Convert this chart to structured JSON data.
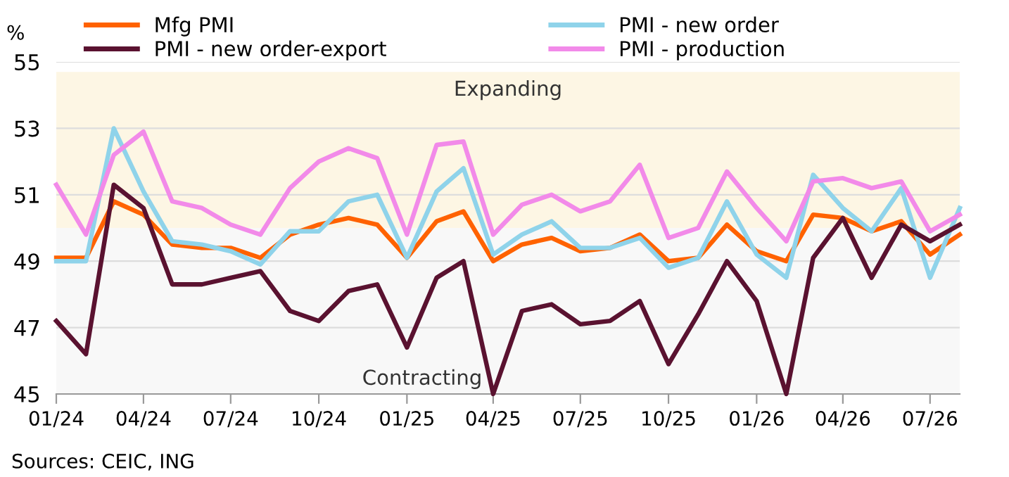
{
  "chart_data": {
    "type": "line",
    "ylabel": "%",
    "x": [
      "2024-01",
      "2024-02",
      "2024-03",
      "2024-04",
      "2024-05",
      "2024-06",
      "2024-07",
      "2024-08",
      "2024-09",
      "2024-10",
      "2024-11",
      "2024-12",
      "2025-01",
      "2025-02",
      "2025-03",
      "2025-04",
      "2025-05",
      "2025-06",
      "2025-07",
      "2025-08",
      "2025-09",
      "2025-10",
      "2025-11",
      "2025-12",
      "2026-01",
      "2026-02",
      "2026-03",
      "2026-04",
      "2026-05",
      "2026-06",
      "2026-07",
      "2026-08"
    ],
    "series": [
      {
        "name": "Mfg PMI",
        "color": "#ff6200",
        "values": [
          49.1,
          49.1,
          50.8,
          50.4,
          49.5,
          49.4,
          49.4,
          49.1,
          49.8,
          50.1,
          50.3,
          50.1,
          49.1,
          50.2,
          50.5,
          49.0,
          49.5,
          49.7,
          49.3,
          49.4,
          49.8,
          49.0,
          49.1,
          50.1,
          49.3,
          49.0,
          50.4,
          50.3,
          49.9,
          50.2,
          49.2,
          49.8
        ]
      },
      {
        "name": "PMI - new order",
        "color": "#8fd3ea",
        "values": [
          49.0,
          49.0,
          53.0,
          51.1,
          49.6,
          49.5,
          49.3,
          48.9,
          49.9,
          49.9,
          50.8,
          51.0,
          49.1,
          51.1,
          51.8,
          49.2,
          49.8,
          50.2,
          49.4,
          49.4,
          49.7,
          48.8,
          49.1,
          50.8,
          49.2,
          48.5,
          51.6,
          50.6,
          49.9,
          51.2,
          48.5,
          50.6
        ]
      },
      {
        "name": "PMI - new order-export",
        "color": "#5a1230",
        "values": [
          47.2,
          46.2,
          51.3,
          50.6,
          48.3,
          48.3,
          48.5,
          48.7,
          47.5,
          47.2,
          48.1,
          48.3,
          46.4,
          48.5,
          49.0,
          45.0,
          47.5,
          47.7,
          47.1,
          47.2,
          47.8,
          45.9,
          47.4,
          49.0,
          47.8,
          45.0,
          49.1,
          50.3,
          48.5,
          50.1,
          49.6,
          50.1
        ]
      },
      {
        "name": "PMI - production",
        "color": "#f28ae9",
        "values": [
          51.3,
          49.8,
          52.2,
          52.9,
          50.8,
          50.6,
          50.1,
          49.8,
          51.2,
          52.0,
          52.4,
          52.1,
          49.8,
          52.5,
          52.6,
          49.8,
          50.7,
          51.0,
          50.5,
          50.8,
          51.9,
          49.7,
          50.0,
          51.7,
          50.6,
          49.6,
          51.4,
          51.5,
          51.2,
          51.4,
          49.9,
          50.4
        ]
      }
    ],
    "xlim": [
      "2024-01",
      "2026-08"
    ],
    "xticks": [
      {
        "value": "2024-01",
        "label": "01/24"
      },
      {
        "value": "2024-04",
        "label": "04/24"
      },
      {
        "value": "2024-07",
        "label": "07/24"
      },
      {
        "value": "2024-10",
        "label": "10/24"
      },
      {
        "value": "2025-01",
        "label": "01/25"
      },
      {
        "value": "2025-04",
        "label": "04/25"
      },
      {
        "value": "2025-07",
        "label": "07/25"
      },
      {
        "value": "2025-10",
        "label": "10/25"
      },
      {
        "value": "2026-01",
        "label": "01/26"
      },
      {
        "value": "2026-04",
        "label": "04/26"
      },
      {
        "value": "2026-07",
        "label": "07/26"
      }
    ],
    "ylim": [
      45,
      55
    ],
    "yticks": [
      45,
      47,
      49,
      51,
      53,
      55
    ],
    "grid": "y",
    "legend": "top",
    "marker": "none",
    "line_style": "solid",
    "bands": [
      {
        "axis": "y",
        "from": 50,
        "to": 54.7,
        "label": "Expanding",
        "color": "#fdf6e4"
      },
      {
        "axis": "y",
        "from": 45,
        "to": 50,
        "label": "Contracting",
        "color": "#f8f8f8"
      }
    ],
    "annotations": [
      "Sources: CEIC, ING"
    ]
  }
}
